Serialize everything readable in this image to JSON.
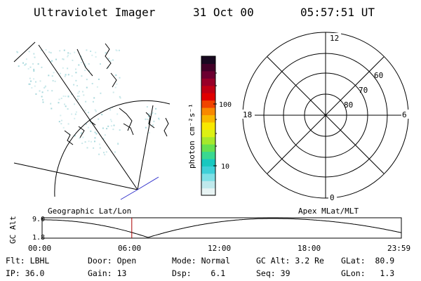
{
  "header": {
    "instrument": "Ultraviolet Imager",
    "date": "31 Oct 00",
    "time": "05:57:51 UT"
  },
  "colorbar": {
    "unit_label": "photon cm⁻²s⁻¹",
    "tick_labels": [
      "100",
      "10"
    ],
    "colors": [
      "#e8f4f4",
      "#bfe9ec",
      "#7fe0e6",
      "#3fd0d8",
      "#18c8c0",
      "#3ad890",
      "#66e050",
      "#a6e82c",
      "#dcf014",
      "#f8e800",
      "#f8b800",
      "#f88800",
      "#f04400",
      "#e00000",
      "#c00014",
      "#980028",
      "#6c0030",
      "#420028",
      "#180820"
    ]
  },
  "geo_panel": {
    "label": "Geographic Lat/Lon"
  },
  "polar_panel": {
    "label": "Apex MLat/MLT",
    "mlt_labels": {
      "top": "12",
      "bottom": "0",
      "left": "18",
      "right": "6"
    },
    "lat_labels": [
      "60",
      "70",
      "80"
    ]
  },
  "altitude_plot": {
    "ylabel": "GC Alt",
    "y_ticks": [
      "9.0",
      "1.8"
    ],
    "x_ticks": [
      "00:00",
      "06:00",
      "12:00",
      "18:00",
      "23:59"
    ],
    "current_time_fraction": 0.2496
  },
  "status": {
    "filter_label": "Flt:",
    "filter_value": "LBHL",
    "ip_label": "IP:",
    "ip_value": "36.0",
    "door_label": "Door:",
    "door_value": "Open",
    "gain_label": "Gain:",
    "gain_value": "13",
    "mode_label": "Mode:",
    "mode_value": "Normal",
    "dsp_label": "Dsp:",
    "dsp_value": "6.1",
    "gcalt_label": "GC Alt:",
    "gcalt_value": "3.2 Re",
    "seq_label": "Seq:",
    "seq_value": "39",
    "glat_label": "GLat:",
    "glat_value": "80.9",
    "glon_label": "GLon:",
    "glon_value": "1.3"
  }
}
